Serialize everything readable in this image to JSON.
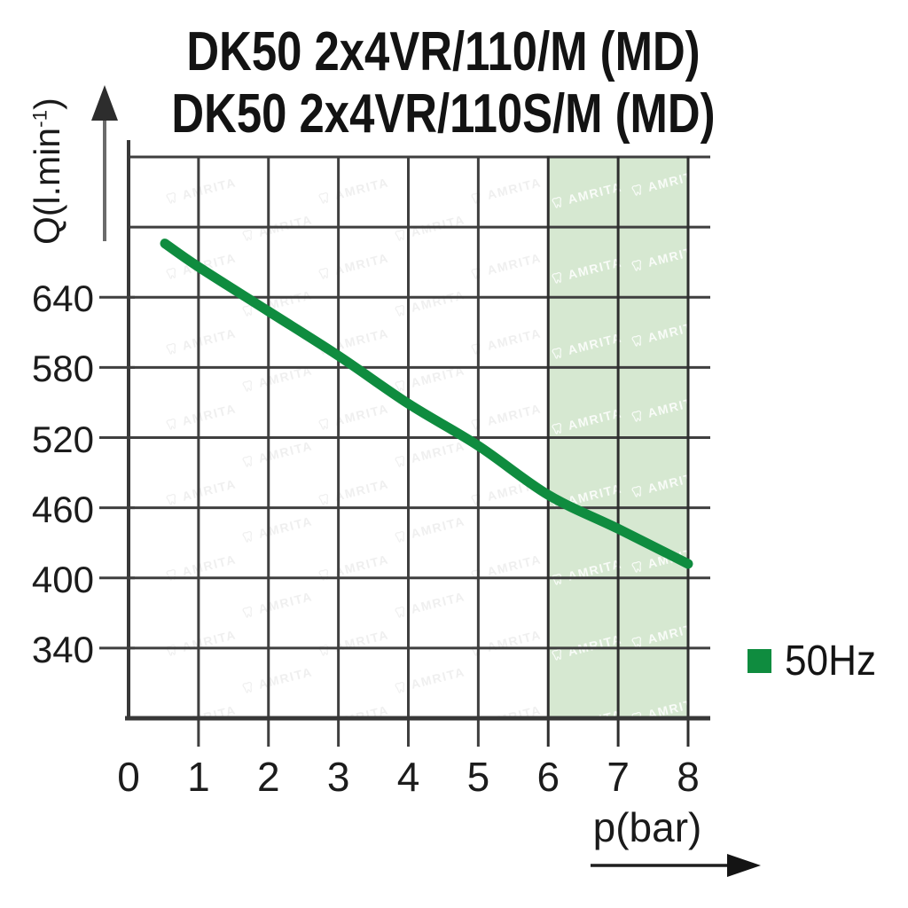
{
  "title": {
    "line1": "DK50 2x4VR/110/M (MD)",
    "line2": "DK50 2x4VR/110S/M (MD)"
  },
  "axes": {
    "y_label_main": "Q(l.min",
    "y_label_sup": "-1",
    "y_label_close": ")",
    "x_label": "p(bar)",
    "x_ticks": [
      "0",
      "1",
      "2",
      "3",
      "4",
      "5",
      "6",
      "7",
      "8"
    ],
    "y_ticks": [
      "640",
      "580",
      "520",
      "460",
      "400",
      "340"
    ]
  },
  "legend": {
    "label": "50Hz",
    "color": "#0f8c3f"
  },
  "watermark": {
    "text": "AMRITA"
  },
  "colors": {
    "curve": "#0f8c3f",
    "band": "#d6e8d1",
    "grid": "#3f3f3f",
    "band_grid": "#2e2e2e",
    "axis": "#383838",
    "ink": "#1a1a1a"
  },
  "chart_data": {
    "type": "line",
    "title": "DK50 2x4VR/110/M (MD) / DK50 2x4VR/110S/M (MD)",
    "xlabel": "p(bar)",
    "ylabel": "Q(l.min-1)",
    "xlim": [
      0,
      8.3
    ],
    "ylim": [
      280,
      760
    ],
    "x_ticks": [
      0,
      1,
      2,
      3,
      4,
      5,
      6,
      7,
      8
    ],
    "y_ticks": [
      640,
      580,
      520,
      460,
      400,
      340
    ],
    "grid": true,
    "legend_position": "right",
    "highlight_band_x": [
      6,
      8
    ],
    "series": [
      {
        "name": "50Hz",
        "color": "#0f8c3f",
        "x": [
          0.52,
          1,
          2,
          3,
          4,
          5,
          6,
          7,
          8
        ],
        "y": [
          686,
          666,
          628,
          590,
          549,
          513,
          471,
          442,
          412
        ]
      }
    ]
  }
}
